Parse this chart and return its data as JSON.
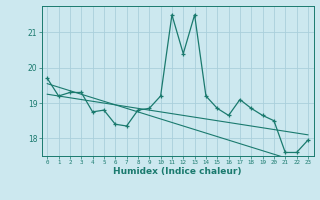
{
  "title": "",
  "xlabel": "Humidex (Indice chaleur)",
  "ylabel": "",
  "bg_color": "#cce8ef",
  "grid_color": "#aacfdb",
  "line_color": "#1a7a6e",
  "x_values": [
    0,
    1,
    2,
    3,
    4,
    5,
    6,
    7,
    8,
    9,
    10,
    11,
    12,
    13,
    14,
    15,
    16,
    17,
    18,
    19,
    20,
    21,
    22,
    23
  ],
  "y_series1": [
    19.7,
    19.2,
    19.3,
    19.3,
    18.75,
    18.8,
    18.4,
    18.35,
    18.8,
    18.85,
    19.2,
    21.5,
    20.4,
    21.5,
    19.2,
    18.85,
    18.65,
    19.1,
    18.85,
    18.65,
    18.5,
    17.6,
    17.6,
    17.95
  ],
  "y_trend1": [
    19.55,
    19.45,
    19.35,
    19.25,
    19.15,
    19.05,
    18.95,
    18.85,
    18.75,
    18.65,
    18.55,
    18.45,
    18.35,
    18.25,
    18.15,
    18.05,
    17.95,
    17.85,
    17.75,
    17.65,
    17.55,
    17.45,
    17.35,
    17.25
  ],
  "y_trend2": [
    19.25,
    19.2,
    19.15,
    19.1,
    19.05,
    19.0,
    18.95,
    18.9,
    18.85,
    18.8,
    18.75,
    18.7,
    18.65,
    18.6,
    18.55,
    18.5,
    18.45,
    18.4,
    18.35,
    18.3,
    18.25,
    18.2,
    18.15,
    18.1
  ],
  "yticks": [
    18,
    19,
    20,
    21
  ],
  "xtick_labels": [
    "0",
    "1",
    "2",
    "3",
    "4",
    "5",
    "6",
    "7",
    "8",
    "9",
    "10",
    "11",
    "12",
    "13",
    "14",
    "15",
    "16",
    "17",
    "18",
    "19",
    "20",
    "21",
    "22",
    "23"
  ],
  "ylim": [
    17.5,
    21.75
  ],
  "xlim": [
    -0.5,
    23.5
  ]
}
